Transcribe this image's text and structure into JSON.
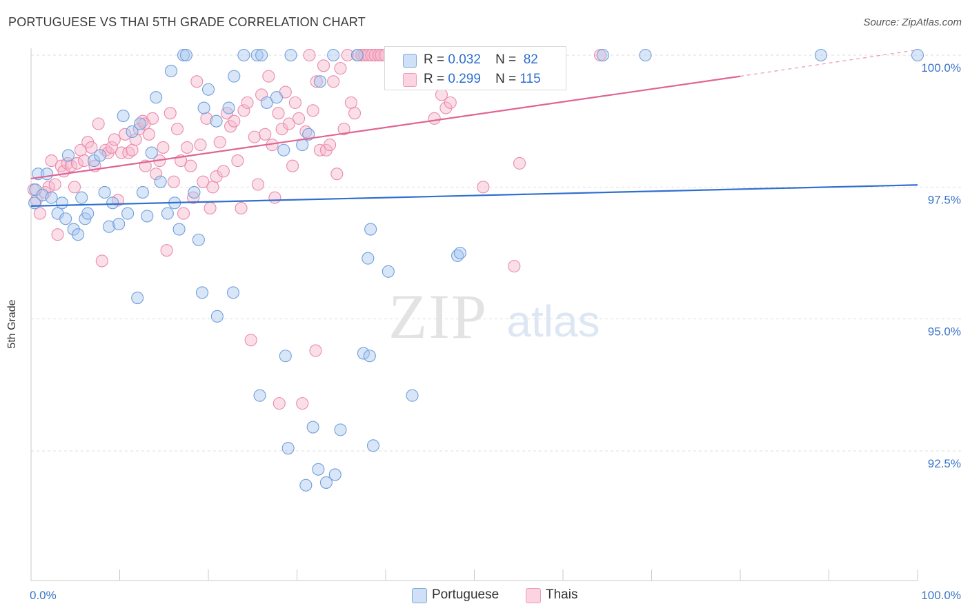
{
  "title": "PORTUGUESE VS THAI 5TH GRADE CORRELATION CHART",
  "source": "Source: ZipAtlas.com",
  "watermark": {
    "zip": "ZIP",
    "atlas": "atlas"
  },
  "legend": [
    {
      "r_label": "R =",
      "r_value": "0.032",
      "n_label": "N =",
      "n_value": "82",
      "color": "#a9c8f0"
    },
    {
      "r_label": "R =",
      "r_value": "0.299",
      "n_label": "N =",
      "n_value": "115",
      "color": "#f7b8cd"
    }
  ],
  "colors": {
    "portuguese_fill": "#a9c8f0",
    "portuguese_stroke": "#6f9fdc",
    "portuguese_line": "#2f6fd0",
    "thais_fill": "#f7b8cd",
    "thais_stroke": "#ea8aab",
    "thais_line": "#e06394",
    "tick_label": "#3a74c9",
    "grid": "#dddddd"
  },
  "chart_data": {
    "type": "scatter",
    "xlabel": "",
    "ylabel": "5th Grade",
    "xlim": [
      0,
      100
    ],
    "ylim": [
      90.1,
      100.2
    ],
    "x_tick_labels": [
      "0.0%",
      "100.0%"
    ],
    "y_ticks": [
      92.5,
      95.0,
      97.5,
      100.0
    ],
    "y_tick_labels": [
      "92.5%",
      "95.0%",
      "97.5%",
      "100.0%"
    ],
    "grid": "horizontal dashed",
    "series": [
      {
        "name": "Portuguese",
        "trend": {
          "x": [
            0,
            100
          ],
          "y": [
            97.14,
            97.54
          ]
        },
        "points": [
          [
            0.4,
            97.2
          ],
          [
            0.5,
            97.45
          ],
          [
            0.8,
            97.75
          ],
          [
            1.3,
            97.35
          ],
          [
            1.8,
            97.75
          ],
          [
            2.3,
            97.3
          ],
          [
            3.0,
            97.0
          ],
          [
            3.5,
            97.2
          ],
          [
            3.9,
            96.9
          ],
          [
            4.2,
            98.1
          ],
          [
            4.8,
            96.7
          ],
          [
            5.3,
            96.6
          ],
          [
            5.7,
            97.3
          ],
          [
            6.1,
            96.9
          ],
          [
            6.4,
            97.0
          ],
          [
            7.1,
            98.0
          ],
          [
            7.8,
            98.1
          ],
          [
            8.3,
            97.4
          ],
          [
            8.8,
            96.75
          ],
          [
            9.2,
            97.2
          ],
          [
            9.9,
            96.8
          ],
          [
            10.4,
            98.85
          ],
          [
            10.9,
            97.0
          ],
          [
            11.4,
            98.55
          ],
          [
            12.3,
            98.7
          ],
          [
            12.6,
            97.4
          ],
          [
            13.1,
            96.95
          ],
          [
            13.6,
            98.15
          ],
          [
            14.1,
            99.2
          ],
          [
            14.6,
            97.6
          ],
          [
            15.4,
            97.0
          ],
          [
            15.8,
            99.7
          ],
          [
            16.2,
            97.2
          ],
          [
            16.7,
            96.7
          ],
          [
            17.2,
            100.0
          ],
          [
            17.5,
            100.0
          ],
          [
            18.4,
            97.4
          ],
          [
            18.9,
            96.5
          ],
          [
            19.5,
            99.0
          ],
          [
            20.0,
            99.35
          ],
          [
            20.9,
            98.75
          ],
          [
            22.3,
            99.0
          ],
          [
            22.9,
            99.6
          ],
          [
            24.0,
            100.0
          ],
          [
            25.5,
            100.0
          ],
          [
            26.0,
            100.0
          ],
          [
            26.6,
            99.1
          ],
          [
            27.7,
            99.2
          ],
          [
            28.5,
            98.2
          ],
          [
            29.3,
            100.0
          ],
          [
            30.6,
            98.3
          ],
          [
            31.3,
            98.5
          ],
          [
            32.6,
            99.5
          ],
          [
            34.1,
            100.0
          ],
          [
            36.8,
            100.0
          ],
          [
            38.3,
            96.7
          ],
          [
            12.0,
            95.4
          ],
          [
            19.3,
            95.5
          ],
          [
            22.8,
            95.5
          ],
          [
            21.0,
            95.05
          ],
          [
            25.8,
            93.55
          ],
          [
            28.7,
            94.3
          ],
          [
            31.8,
            92.95
          ],
          [
            29.0,
            92.55
          ],
          [
            31.0,
            91.85
          ],
          [
            32.4,
            92.15
          ],
          [
            33.3,
            91.9
          ],
          [
            34.3,
            92.05
          ],
          [
            34.9,
            92.9
          ],
          [
            37.5,
            94.35
          ],
          [
            38.2,
            94.3
          ],
          [
            38.6,
            92.6
          ],
          [
            38.0,
            96.15
          ],
          [
            40.3,
            95.9
          ],
          [
            43.0,
            93.55
          ],
          [
            48.1,
            96.2
          ],
          [
            48.4,
            96.25
          ],
          [
            55.0,
            100.0
          ],
          [
            64.5,
            100.0
          ],
          [
            69.3,
            100.0
          ],
          [
            89.1,
            100.0
          ],
          [
            100.0,
            100.0
          ]
        ]
      },
      {
        "name": "Thais",
        "trend": {
          "x": [
            0,
            80
          ],
          "y": [
            97.66,
            99.6
          ]
        },
        "trend_dashed": {
          "x": [
            80,
            100
          ],
          "y": [
            99.6,
            100.1
          ]
        },
        "points": [
          [
            0.3,
            97.45
          ],
          [
            0.6,
            97.25
          ],
          [
            1.0,
            97.0
          ],
          [
            1.6,
            97.4
          ],
          [
            2.0,
            97.5
          ],
          [
            2.3,
            98.0
          ],
          [
            2.7,
            97.55
          ],
          [
            3.0,
            96.6
          ],
          [
            3.4,
            97.9
          ],
          [
            3.7,
            97.8
          ],
          [
            4.1,
            97.95
          ],
          [
            4.5,
            97.9
          ],
          [
            4.9,
            97.5
          ],
          [
            5.2,
            97.95
          ],
          [
            5.6,
            98.2
          ],
          [
            6.0,
            98.0
          ],
          [
            6.4,
            98.35
          ],
          [
            6.8,
            98.25
          ],
          [
            7.2,
            97.9
          ],
          [
            7.6,
            98.7
          ],
          [
            8.0,
            96.1
          ],
          [
            8.4,
            98.2
          ],
          [
            8.7,
            98.15
          ],
          [
            9.1,
            98.25
          ],
          [
            9.4,
            98.4
          ],
          [
            9.8,
            97.25
          ],
          [
            10.2,
            98.15
          ],
          [
            10.6,
            98.5
          ],
          [
            11.0,
            98.15
          ],
          [
            11.4,
            98.2
          ],
          [
            11.8,
            98.4
          ],
          [
            12.2,
            98.6
          ],
          [
            12.6,
            98.75
          ],
          [
            12.9,
            97.9
          ],
          [
            13.3,
            98.5
          ],
          [
            13.7,
            98.8
          ],
          [
            14.1,
            97.75
          ],
          [
            14.5,
            98.0
          ],
          [
            14.9,
            98.25
          ],
          [
            15.3,
            96.3
          ],
          [
            15.7,
            98.9
          ],
          [
            16.1,
            97.6
          ],
          [
            16.5,
            98.6
          ],
          [
            16.9,
            98.0
          ],
          [
            17.2,
            97.0
          ],
          [
            17.6,
            98.25
          ],
          [
            18.0,
            97.9
          ],
          [
            18.3,
            97.3
          ],
          [
            18.7,
            99.5
          ],
          [
            19.1,
            98.3
          ],
          [
            19.4,
            97.6
          ],
          [
            19.8,
            98.8
          ],
          [
            20.2,
            97.1
          ],
          [
            20.5,
            97.5
          ],
          [
            20.9,
            97.7
          ],
          [
            21.3,
            98.35
          ],
          [
            21.7,
            97.8
          ],
          [
            22.1,
            98.9
          ],
          [
            22.5,
            98.65
          ],
          [
            22.9,
            98.75
          ],
          [
            23.3,
            98.0
          ],
          [
            23.7,
            97.1
          ],
          [
            24.0,
            98.95
          ],
          [
            24.4,
            99.1
          ],
          [
            24.8,
            94.6
          ],
          [
            25.2,
            98.45
          ],
          [
            25.6,
            97.55
          ],
          [
            26.0,
            99.25
          ],
          [
            26.4,
            98.5
          ],
          [
            26.8,
            99.6
          ],
          [
            27.2,
            98.3
          ],
          [
            27.5,
            97.3
          ],
          [
            27.9,
            98.9
          ],
          [
            28.3,
            98.6
          ],
          [
            28.7,
            99.3
          ],
          [
            29.1,
            98.7
          ],
          [
            29.5,
            97.9
          ],
          [
            29.8,
            99.1
          ],
          [
            30.2,
            98.8
          ],
          [
            30.6,
            93.4
          ],
          [
            31.0,
            98.55
          ],
          [
            31.4,
            100.0
          ],
          [
            31.8,
            98.95
          ],
          [
            32.2,
            99.5
          ],
          [
            32.6,
            98.2
          ],
          [
            33.0,
            99.8
          ],
          [
            33.3,
            98.2
          ],
          [
            33.7,
            98.3
          ],
          [
            34.1,
            99.5
          ],
          [
            34.5,
            97.75
          ],
          [
            34.9,
            99.75
          ],
          [
            35.3,
            98.6
          ],
          [
            35.7,
            100.0
          ],
          [
            36.1,
            99.1
          ],
          [
            36.5,
            98.9
          ],
          [
            36.9,
            100.0
          ],
          [
            37.3,
            100.0
          ],
          [
            37.6,
            100.0
          ],
          [
            38.0,
            100.0
          ],
          [
            38.4,
            100.0
          ],
          [
            38.8,
            100.0
          ],
          [
            39.2,
            100.0
          ],
          [
            39.5,
            100.0
          ],
          [
            39.9,
            100.0
          ],
          [
            45.5,
            98.8
          ],
          [
            46.3,
            99.25
          ],
          [
            46.8,
            99.0
          ],
          [
            47.3,
            99.1
          ],
          [
            51.0,
            97.5
          ],
          [
            54.5,
            96.0
          ],
          [
            32.1,
            94.4
          ],
          [
            28.0,
            93.4
          ],
          [
            55.1,
            97.95
          ],
          [
            64.2,
            100.0
          ],
          [
            12.8,
            98.7
          ]
        ]
      }
    ]
  }
}
